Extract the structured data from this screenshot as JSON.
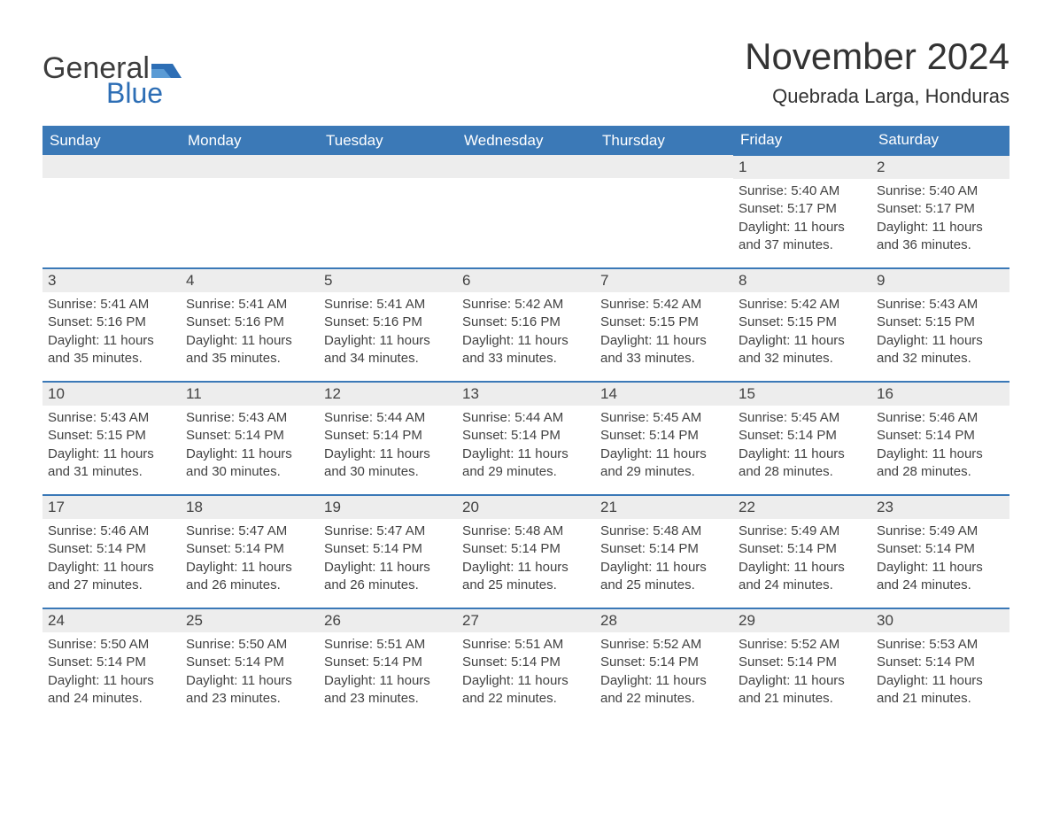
{
  "brand": {
    "word1": "General",
    "word2": "Blue",
    "text_color": "#3d3d3d",
    "accent_color": "#2d6eb5"
  },
  "header": {
    "title": "November 2024",
    "location": "Quebrada Larga, Honduras"
  },
  "colors": {
    "header_bg": "#3b79b7",
    "header_text": "#ffffff",
    "daynum_bg": "#ededed",
    "text": "#424242",
    "row_border": "#3b79b7",
    "page_bg": "#ffffff"
  },
  "fonts": {
    "title_size_pt": 42,
    "location_size_pt": 22,
    "weekday_size_pt": 17,
    "daynum_size_pt": 17,
    "body_size_pt": 15
  },
  "weekdays": [
    "Sunday",
    "Monday",
    "Tuesday",
    "Wednesday",
    "Thursday",
    "Friday",
    "Saturday"
  ],
  "weeks": [
    [
      null,
      null,
      null,
      null,
      null,
      {
        "n": "1",
        "sunrise": "Sunrise: 5:40 AM",
        "sunset": "Sunset: 5:17 PM",
        "daylight": "Daylight: 11 hours and 37 minutes."
      },
      {
        "n": "2",
        "sunrise": "Sunrise: 5:40 AM",
        "sunset": "Sunset: 5:17 PM",
        "daylight": "Daylight: 11 hours and 36 minutes."
      }
    ],
    [
      {
        "n": "3",
        "sunrise": "Sunrise: 5:41 AM",
        "sunset": "Sunset: 5:16 PM",
        "daylight": "Daylight: 11 hours and 35 minutes."
      },
      {
        "n": "4",
        "sunrise": "Sunrise: 5:41 AM",
        "sunset": "Sunset: 5:16 PM",
        "daylight": "Daylight: 11 hours and 35 minutes."
      },
      {
        "n": "5",
        "sunrise": "Sunrise: 5:41 AM",
        "sunset": "Sunset: 5:16 PM",
        "daylight": "Daylight: 11 hours and 34 minutes."
      },
      {
        "n": "6",
        "sunrise": "Sunrise: 5:42 AM",
        "sunset": "Sunset: 5:16 PM",
        "daylight": "Daylight: 11 hours and 33 minutes."
      },
      {
        "n": "7",
        "sunrise": "Sunrise: 5:42 AM",
        "sunset": "Sunset: 5:15 PM",
        "daylight": "Daylight: 11 hours and 33 minutes."
      },
      {
        "n": "8",
        "sunrise": "Sunrise: 5:42 AM",
        "sunset": "Sunset: 5:15 PM",
        "daylight": "Daylight: 11 hours and 32 minutes."
      },
      {
        "n": "9",
        "sunrise": "Sunrise: 5:43 AM",
        "sunset": "Sunset: 5:15 PM",
        "daylight": "Daylight: 11 hours and 32 minutes."
      }
    ],
    [
      {
        "n": "10",
        "sunrise": "Sunrise: 5:43 AM",
        "sunset": "Sunset: 5:15 PM",
        "daylight": "Daylight: 11 hours and 31 minutes."
      },
      {
        "n": "11",
        "sunrise": "Sunrise: 5:43 AM",
        "sunset": "Sunset: 5:14 PM",
        "daylight": "Daylight: 11 hours and 30 minutes."
      },
      {
        "n": "12",
        "sunrise": "Sunrise: 5:44 AM",
        "sunset": "Sunset: 5:14 PM",
        "daylight": "Daylight: 11 hours and 30 minutes."
      },
      {
        "n": "13",
        "sunrise": "Sunrise: 5:44 AM",
        "sunset": "Sunset: 5:14 PM",
        "daylight": "Daylight: 11 hours and 29 minutes."
      },
      {
        "n": "14",
        "sunrise": "Sunrise: 5:45 AM",
        "sunset": "Sunset: 5:14 PM",
        "daylight": "Daylight: 11 hours and 29 minutes."
      },
      {
        "n": "15",
        "sunrise": "Sunrise: 5:45 AM",
        "sunset": "Sunset: 5:14 PM",
        "daylight": "Daylight: 11 hours and 28 minutes."
      },
      {
        "n": "16",
        "sunrise": "Sunrise: 5:46 AM",
        "sunset": "Sunset: 5:14 PM",
        "daylight": "Daylight: 11 hours and 28 minutes."
      }
    ],
    [
      {
        "n": "17",
        "sunrise": "Sunrise: 5:46 AM",
        "sunset": "Sunset: 5:14 PM",
        "daylight": "Daylight: 11 hours and 27 minutes."
      },
      {
        "n": "18",
        "sunrise": "Sunrise: 5:47 AM",
        "sunset": "Sunset: 5:14 PM",
        "daylight": "Daylight: 11 hours and 26 minutes."
      },
      {
        "n": "19",
        "sunrise": "Sunrise: 5:47 AM",
        "sunset": "Sunset: 5:14 PM",
        "daylight": "Daylight: 11 hours and 26 minutes."
      },
      {
        "n": "20",
        "sunrise": "Sunrise: 5:48 AM",
        "sunset": "Sunset: 5:14 PM",
        "daylight": "Daylight: 11 hours and 25 minutes."
      },
      {
        "n": "21",
        "sunrise": "Sunrise: 5:48 AM",
        "sunset": "Sunset: 5:14 PM",
        "daylight": "Daylight: 11 hours and 25 minutes."
      },
      {
        "n": "22",
        "sunrise": "Sunrise: 5:49 AM",
        "sunset": "Sunset: 5:14 PM",
        "daylight": "Daylight: 11 hours and 24 minutes."
      },
      {
        "n": "23",
        "sunrise": "Sunrise: 5:49 AM",
        "sunset": "Sunset: 5:14 PM",
        "daylight": "Daylight: 11 hours and 24 minutes."
      }
    ],
    [
      {
        "n": "24",
        "sunrise": "Sunrise: 5:50 AM",
        "sunset": "Sunset: 5:14 PM",
        "daylight": "Daylight: 11 hours and 24 minutes."
      },
      {
        "n": "25",
        "sunrise": "Sunrise: 5:50 AM",
        "sunset": "Sunset: 5:14 PM",
        "daylight": "Daylight: 11 hours and 23 minutes."
      },
      {
        "n": "26",
        "sunrise": "Sunrise: 5:51 AM",
        "sunset": "Sunset: 5:14 PM",
        "daylight": "Daylight: 11 hours and 23 minutes."
      },
      {
        "n": "27",
        "sunrise": "Sunrise: 5:51 AM",
        "sunset": "Sunset: 5:14 PM",
        "daylight": "Daylight: 11 hours and 22 minutes."
      },
      {
        "n": "28",
        "sunrise": "Sunrise: 5:52 AM",
        "sunset": "Sunset: 5:14 PM",
        "daylight": "Daylight: 11 hours and 22 minutes."
      },
      {
        "n": "29",
        "sunrise": "Sunrise: 5:52 AM",
        "sunset": "Sunset: 5:14 PM",
        "daylight": "Daylight: 11 hours and 21 minutes."
      },
      {
        "n": "30",
        "sunrise": "Sunrise: 5:53 AM",
        "sunset": "Sunset: 5:14 PM",
        "daylight": "Daylight: 11 hours and 21 minutes."
      }
    ]
  ]
}
